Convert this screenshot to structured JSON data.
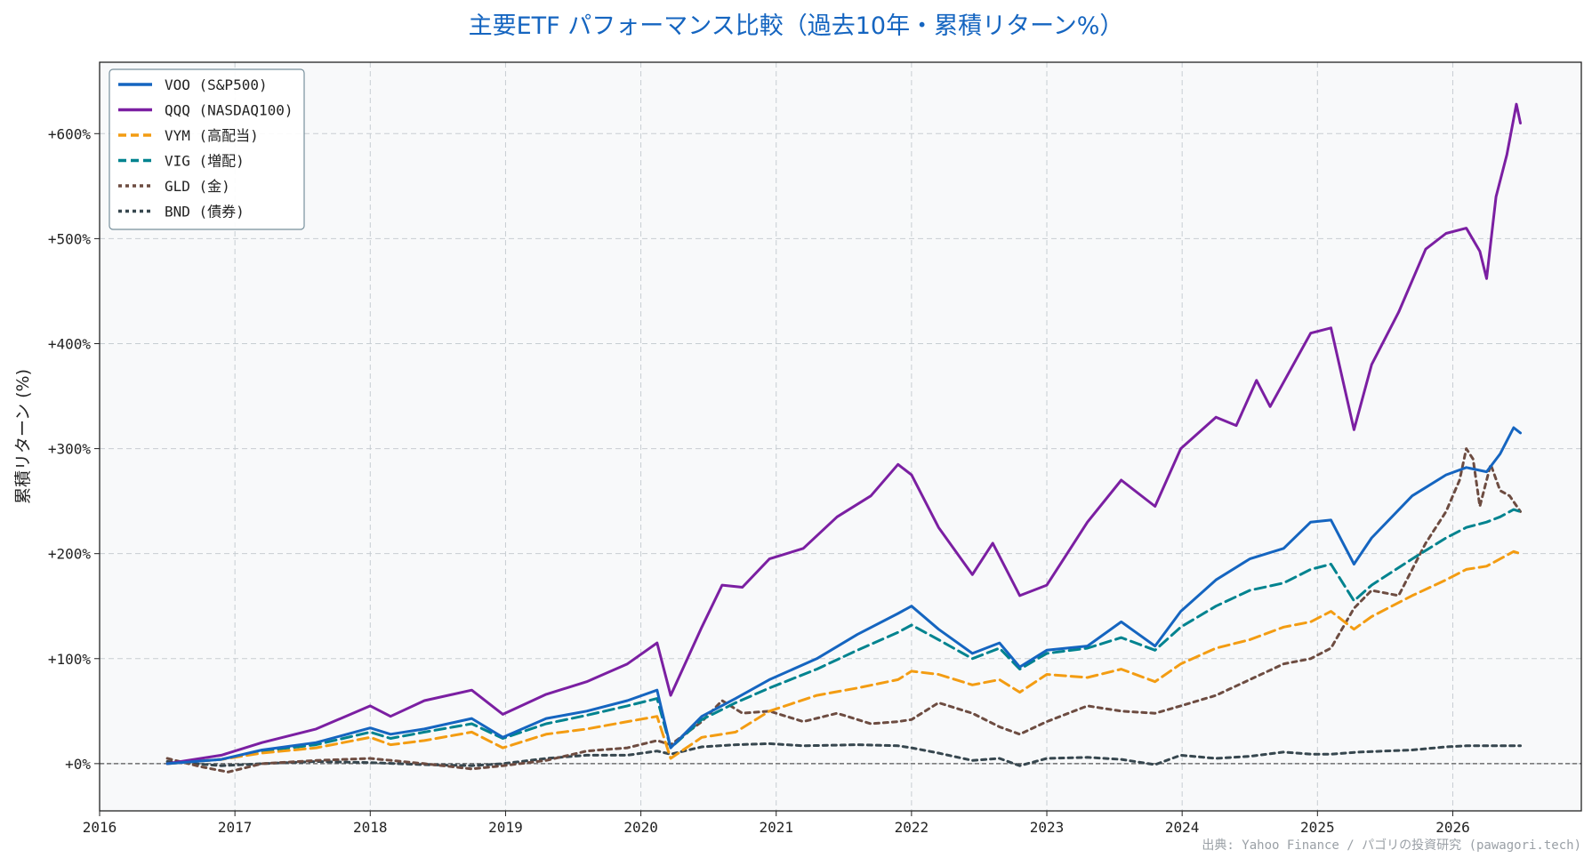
{
  "chart_data": {
    "type": "line",
    "title": "主要ETF パフォーマンス比較（過去10年・累積リターン%）",
    "ylabel": "累積リターン (%)",
    "xlabel": "",
    "xlim": [
      2016,
      2026.95
    ],
    "ylim": [
      -45,
      668
    ],
    "x_ticks": [
      2016,
      2017,
      2018,
      2019,
      2020,
      2021,
      2022,
      2023,
      2024,
      2025,
      2026
    ],
    "x_tick_labels": [
      "2016",
      "2017",
      "2018",
      "2019",
      "2020",
      "2021",
      "2022",
      "2023",
      "2024",
      "2025",
      "2026"
    ],
    "y_ticks": [
      0,
      100,
      200,
      300,
      400,
      500,
      600
    ],
    "y_tick_labels": [
      "+0%",
      "+100%",
      "+200%",
      "+300%",
      "+400%",
      "+500%",
      "+600%"
    ],
    "grid": true,
    "zero_line": true,
    "legend_position": "top-left",
    "source_note": "出典: Yahoo Finance / パゴリの投資研究 (pawagori.tech)",
    "series": [
      {
        "name": "VOO (S&P500)",
        "color": "#1565c0",
        "style": "solid",
        "points": [
          [
            2016.5,
            0
          ],
          [
            2016.9,
            4
          ],
          [
            2017.2,
            13
          ],
          [
            2017.6,
            20
          ],
          [
            2018.0,
            34
          ],
          [
            2018.15,
            28
          ],
          [
            2018.4,
            33
          ],
          [
            2018.75,
            43
          ],
          [
            2018.98,
            25
          ],
          [
            2019.3,
            43
          ],
          [
            2019.6,
            50
          ],
          [
            2019.9,
            60
          ],
          [
            2020.12,
            70
          ],
          [
            2020.22,
            15
          ],
          [
            2020.45,
            45
          ],
          [
            2020.7,
            62
          ],
          [
            2020.95,
            80
          ],
          [
            2021.3,
            100
          ],
          [
            2021.6,
            123
          ],
          [
            2021.9,
            143
          ],
          [
            2022.0,
            150
          ],
          [
            2022.2,
            128
          ],
          [
            2022.45,
            105
          ],
          [
            2022.65,
            115
          ],
          [
            2022.8,
            92
          ],
          [
            2023.0,
            108
          ],
          [
            2023.3,
            112
          ],
          [
            2023.55,
            135
          ],
          [
            2023.8,
            112
          ],
          [
            2023.99,
            145
          ],
          [
            2024.25,
            175
          ],
          [
            2024.5,
            195
          ],
          [
            2024.75,
            205
          ],
          [
            2024.95,
            230
          ],
          [
            2025.1,
            232
          ],
          [
            2025.27,
            190
          ],
          [
            2025.4,
            215
          ],
          [
            2025.7,
            255
          ],
          [
            2025.95,
            275
          ],
          [
            2026.1,
            282
          ],
          [
            2026.25,
            278
          ],
          [
            2026.35,
            295
          ],
          [
            2026.45,
            320
          ],
          [
            2026.5,
            315
          ]
        ]
      },
      {
        "name": "QQQ (NASDAQ100)",
        "color": "#7b1fa2",
        "style": "solid",
        "points": [
          [
            2016.5,
            0
          ],
          [
            2016.9,
            8
          ],
          [
            2017.2,
            20
          ],
          [
            2017.6,
            33
          ],
          [
            2018.0,
            55
          ],
          [
            2018.15,
            45
          ],
          [
            2018.4,
            60
          ],
          [
            2018.75,
            70
          ],
          [
            2018.98,
            47
          ],
          [
            2019.3,
            66
          ],
          [
            2019.6,
            78
          ],
          [
            2019.9,
            95
          ],
          [
            2020.12,
            115
          ],
          [
            2020.22,
            65
          ],
          [
            2020.45,
            130
          ],
          [
            2020.6,
            170
          ],
          [
            2020.75,
            168
          ],
          [
            2020.95,
            195
          ],
          [
            2021.2,
            205
          ],
          [
            2021.45,
            235
          ],
          [
            2021.7,
            255
          ],
          [
            2021.9,
            285
          ],
          [
            2022.0,
            275
          ],
          [
            2022.2,
            225
          ],
          [
            2022.45,
            180
          ],
          [
            2022.6,
            210
          ],
          [
            2022.8,
            160
          ],
          [
            2023.0,
            170
          ],
          [
            2023.3,
            230
          ],
          [
            2023.55,
            270
          ],
          [
            2023.8,
            245
          ],
          [
            2023.99,
            300
          ],
          [
            2024.25,
            330
          ],
          [
            2024.4,
            322
          ],
          [
            2024.55,
            365
          ],
          [
            2024.65,
            340
          ],
          [
            2024.95,
            410
          ],
          [
            2025.1,
            415
          ],
          [
            2025.27,
            318
          ],
          [
            2025.4,
            380
          ],
          [
            2025.6,
            430
          ],
          [
            2025.8,
            490
          ],
          [
            2025.95,
            505
          ],
          [
            2026.1,
            510
          ],
          [
            2026.2,
            488
          ],
          [
            2026.25,
            462
          ],
          [
            2026.32,
            540
          ],
          [
            2026.4,
            580
          ],
          [
            2026.47,
            628
          ],
          [
            2026.5,
            610
          ]
        ]
      },
      {
        "name": "VYM (高配当)",
        "color": "#f39c12",
        "style": "dashed",
        "points": [
          [
            2016.5,
            0
          ],
          [
            2016.9,
            4
          ],
          [
            2017.2,
            10
          ],
          [
            2017.6,
            15
          ],
          [
            2018.0,
            25
          ],
          [
            2018.15,
            18
          ],
          [
            2018.4,
            22
          ],
          [
            2018.75,
            30
          ],
          [
            2018.98,
            15
          ],
          [
            2019.3,
            28
          ],
          [
            2019.6,
            33
          ],
          [
            2019.9,
            40
          ],
          [
            2020.12,
            45
          ],
          [
            2020.22,
            5
          ],
          [
            2020.45,
            25
          ],
          [
            2020.7,
            30
          ],
          [
            2020.95,
            50
          ],
          [
            2021.3,
            65
          ],
          [
            2021.6,
            72
          ],
          [
            2021.9,
            80
          ],
          [
            2022.0,
            88
          ],
          [
            2022.2,
            85
          ],
          [
            2022.45,
            75
          ],
          [
            2022.65,
            80
          ],
          [
            2022.8,
            68
          ],
          [
            2023.0,
            85
          ],
          [
            2023.3,
            82
          ],
          [
            2023.55,
            90
          ],
          [
            2023.8,
            78
          ],
          [
            2023.99,
            95
          ],
          [
            2024.25,
            110
          ],
          [
            2024.5,
            118
          ],
          [
            2024.75,
            130
          ],
          [
            2024.95,
            135
          ],
          [
            2025.1,
            145
          ],
          [
            2025.27,
            128
          ],
          [
            2025.4,
            140
          ],
          [
            2025.7,
            160
          ],
          [
            2025.95,
            175
          ],
          [
            2026.1,
            185
          ],
          [
            2026.25,
            188
          ],
          [
            2026.35,
            195
          ],
          [
            2026.45,
            202
          ],
          [
            2026.5,
            200
          ]
        ]
      },
      {
        "name": "VIG (増配)",
        "color": "#00838f",
        "style": "dashed",
        "points": [
          [
            2016.5,
            0
          ],
          [
            2016.9,
            4
          ],
          [
            2017.2,
            12
          ],
          [
            2017.6,
            18
          ],
          [
            2018.0,
            30
          ],
          [
            2018.15,
            24
          ],
          [
            2018.4,
            30
          ],
          [
            2018.75,
            38
          ],
          [
            2018.98,
            24
          ],
          [
            2019.3,
            38
          ],
          [
            2019.6,
            46
          ],
          [
            2019.9,
            55
          ],
          [
            2020.12,
            62
          ],
          [
            2020.22,
            15
          ],
          [
            2020.45,
            42
          ],
          [
            2020.7,
            58
          ],
          [
            2020.95,
            72
          ],
          [
            2021.3,
            90
          ],
          [
            2021.6,
            108
          ],
          [
            2021.9,
            125
          ],
          [
            2022.0,
            132
          ],
          [
            2022.2,
            118
          ],
          [
            2022.45,
            100
          ],
          [
            2022.65,
            110
          ],
          [
            2022.8,
            90
          ],
          [
            2023.0,
            105
          ],
          [
            2023.3,
            110
          ],
          [
            2023.55,
            120
          ],
          [
            2023.8,
            108
          ],
          [
            2023.99,
            130
          ],
          [
            2024.25,
            150
          ],
          [
            2024.5,
            165
          ],
          [
            2024.75,
            172
          ],
          [
            2024.95,
            185
          ],
          [
            2025.1,
            190
          ],
          [
            2025.27,
            155
          ],
          [
            2025.4,
            170
          ],
          [
            2025.7,
            195
          ],
          [
            2025.95,
            215
          ],
          [
            2026.1,
            225
          ],
          [
            2026.25,
            230
          ],
          [
            2026.35,
            235
          ],
          [
            2026.45,
            242
          ],
          [
            2026.5,
            240
          ]
        ]
      },
      {
        "name": "GLD (金)",
        "color": "#6d4c41",
        "style": "dotted",
        "points": [
          [
            2016.5,
            5
          ],
          [
            2016.75,
            -3
          ],
          [
            2016.95,
            -8
          ],
          [
            2017.2,
            0
          ],
          [
            2017.6,
            3
          ],
          [
            2018.0,
            5
          ],
          [
            2018.4,
            0
          ],
          [
            2018.75,
            -5
          ],
          [
            2018.98,
            -2
          ],
          [
            2019.3,
            3
          ],
          [
            2019.6,
            12
          ],
          [
            2019.9,
            15
          ],
          [
            2020.12,
            22
          ],
          [
            2020.22,
            18
          ],
          [
            2020.45,
            40
          ],
          [
            2020.6,
            60
          ],
          [
            2020.75,
            48
          ],
          [
            2020.95,
            50
          ],
          [
            2021.2,
            40
          ],
          [
            2021.45,
            48
          ],
          [
            2021.7,
            38
          ],
          [
            2021.9,
            40
          ],
          [
            2022.0,
            42
          ],
          [
            2022.2,
            58
          ],
          [
            2022.45,
            48
          ],
          [
            2022.65,
            35
          ],
          [
            2022.8,
            28
          ],
          [
            2023.0,
            40
          ],
          [
            2023.3,
            55
          ],
          [
            2023.55,
            50
          ],
          [
            2023.8,
            48
          ],
          [
            2023.99,
            55
          ],
          [
            2024.25,
            65
          ],
          [
            2024.5,
            80
          ],
          [
            2024.75,
            95
          ],
          [
            2024.95,
            100
          ],
          [
            2025.1,
            110
          ],
          [
            2025.27,
            148
          ],
          [
            2025.4,
            165
          ],
          [
            2025.6,
            160
          ],
          [
            2025.8,
            210
          ],
          [
            2025.95,
            240
          ],
          [
            2026.05,
            270
          ],
          [
            2026.1,
            300
          ],
          [
            2026.15,
            290
          ],
          [
            2026.2,
            245
          ],
          [
            2026.28,
            285
          ],
          [
            2026.35,
            260
          ],
          [
            2026.42,
            255
          ],
          [
            2026.5,
            240
          ]
        ]
      },
      {
        "name": "BND (債券)",
        "color": "#37474f",
        "style": "dotted",
        "points": [
          [
            2016.5,
            2
          ],
          [
            2016.9,
            -2
          ],
          [
            2017.2,
            0
          ],
          [
            2017.6,
            2
          ],
          [
            2018.0,
            1
          ],
          [
            2018.4,
            -1
          ],
          [
            2018.75,
            -2
          ],
          [
            2018.98,
            0
          ],
          [
            2019.3,
            5
          ],
          [
            2019.6,
            8
          ],
          [
            2019.9,
            8
          ],
          [
            2020.12,
            12
          ],
          [
            2020.22,
            9
          ],
          [
            2020.45,
            16
          ],
          [
            2020.7,
            18
          ],
          [
            2020.95,
            19
          ],
          [
            2021.2,
            17
          ],
          [
            2021.6,
            18
          ],
          [
            2021.9,
            17
          ],
          [
            2022.0,
            15
          ],
          [
            2022.2,
            10
          ],
          [
            2022.45,
            3
          ],
          [
            2022.65,
            5
          ],
          [
            2022.8,
            -2
          ],
          [
            2023.0,
            5
          ],
          [
            2023.3,
            6
          ],
          [
            2023.55,
            4
          ],
          [
            2023.8,
            -1
          ],
          [
            2023.99,
            8
          ],
          [
            2024.25,
            5
          ],
          [
            2024.5,
            7
          ],
          [
            2024.75,
            11
          ],
          [
            2024.95,
            9
          ],
          [
            2025.1,
            9
          ],
          [
            2025.3,
            11
          ],
          [
            2025.5,
            12
          ],
          [
            2025.7,
            13
          ],
          [
            2025.95,
            16
          ],
          [
            2026.1,
            17
          ],
          [
            2026.3,
            17
          ],
          [
            2026.5,
            17
          ]
        ]
      }
    ]
  }
}
